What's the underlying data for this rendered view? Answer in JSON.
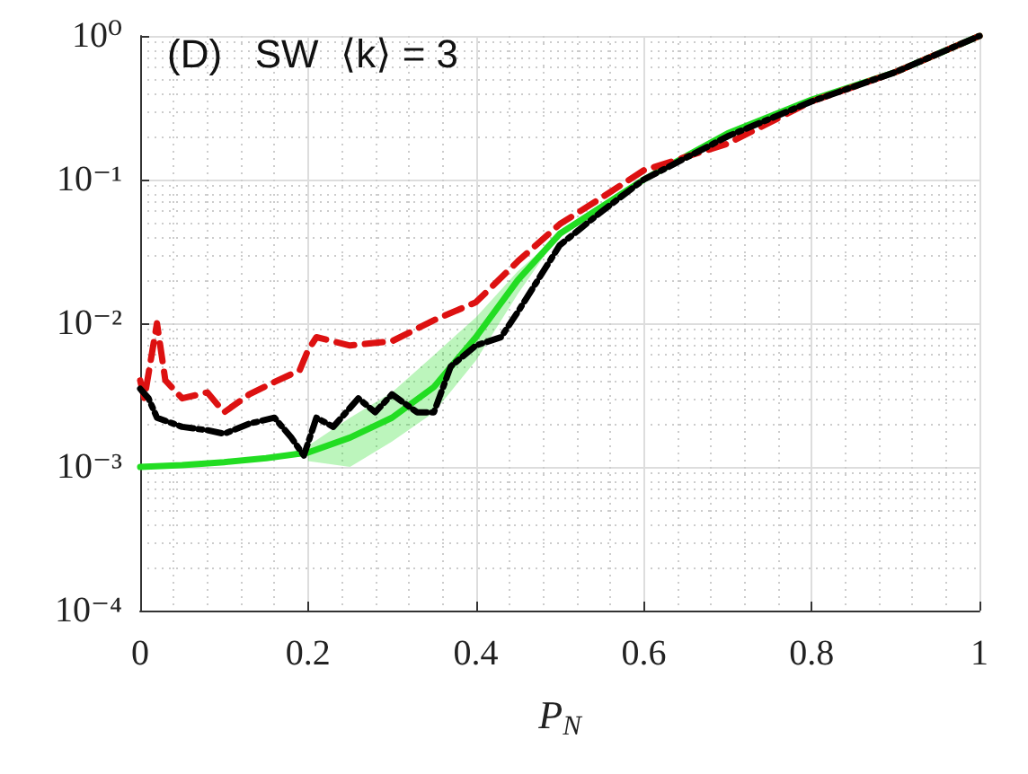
{
  "chart_data": {
    "type": "line",
    "title": "(D)   SW  ⟨k⟩ = 3",
    "xlabel": "P$_{N}$",
    "xlim": [
      0,
      1
    ],
    "xticks": [
      0,
      0.2,
      0.4,
      0.6,
      0.8,
      1
    ],
    "ylim": [
      0.0001,
      1
    ],
    "yticks": [
      {
        "value": 0.0001,
        "label": "10⁻⁴"
      },
      {
        "value": 0.001,
        "label": "10⁻³"
      },
      {
        "value": 0.01,
        "label": "10⁻²"
      },
      {
        "value": 0.1,
        "label": "10⁻¹"
      },
      {
        "value": 1,
        "label": "10⁰"
      }
    ],
    "log": "y",
    "grid": true,
    "marker": "none",
    "series": [
      {
        "color": "#22dd22",
        "line_style": "solid",
        "x": [
          0,
          0.05,
          0.1,
          0.15,
          0.2,
          0.25,
          0.3,
          0.35,
          0.4,
          0.45,
          0.5,
          0.6,
          0.7,
          0.8,
          0.9,
          1
        ],
        "values": [
          0.001,
          0.00103,
          0.00108,
          0.00115,
          0.00126,
          0.0016,
          0.0022,
          0.0036,
          0.008,
          0.02,
          0.042,
          0.1,
          0.21,
          0.36,
          0.56,
          1
        ],
        "lower": [
          null,
          null,
          null,
          null,
          0.0011,
          0.001,
          0.0015,
          0.0024,
          0.0055,
          0.016,
          0.042,
          null,
          null,
          null,
          null,
          null
        ],
        "upper": [
          null,
          null,
          null,
          null,
          0.0014,
          0.0022,
          0.0033,
          0.006,
          0.011,
          0.023,
          0.042,
          null,
          null,
          null,
          null,
          null
        ]
      },
      {
        "color": "#dd1111",
        "line_style": "dashed",
        "x": [
          0,
          0.005,
          0.02,
          0.03,
          0.05,
          0.08,
          0.1,
          0.13,
          0.16,
          0.19,
          0.2,
          0.21,
          0.25,
          0.3,
          0.35,
          0.4,
          0.45,
          0.5,
          0.55,
          0.6,
          0.7,
          0.8,
          0.9,
          1
        ],
        "values": [
          0.004,
          0.003,
          0.01,
          0.004,
          0.003,
          0.0033,
          0.0024,
          0.0032,
          0.0039,
          0.0047,
          0.0065,
          0.008,
          0.007,
          0.0075,
          0.0105,
          0.014,
          0.027,
          0.049,
          0.075,
          0.116,
          0.178,
          0.35,
          0.56,
          1
        ]
      },
      {
        "color": "#000000",
        "line_style": "dashdot",
        "x": [
          0,
          0.01,
          0.02,
          0.05,
          0.08,
          0.1,
          0.13,
          0.16,
          0.18,
          0.195,
          0.21,
          0.23,
          0.26,
          0.28,
          0.3,
          0.33,
          0.35,
          0.37,
          0.4,
          0.43,
          0.45,
          0.5,
          0.55,
          0.6,
          0.7,
          0.8,
          0.9,
          1
        ],
        "values": [
          0.0035,
          0.003,
          0.0022,
          0.0019,
          0.0018,
          0.0017,
          0.002,
          0.0022,
          0.0016,
          0.0012,
          0.0022,
          0.0019,
          0.003,
          0.0024,
          0.0032,
          0.0024,
          0.0024,
          0.005,
          0.007,
          0.008,
          0.012,
          0.035,
          0.06,
          0.1,
          0.2,
          0.35,
          0.56,
          1
        ]
      }
    ]
  }
}
